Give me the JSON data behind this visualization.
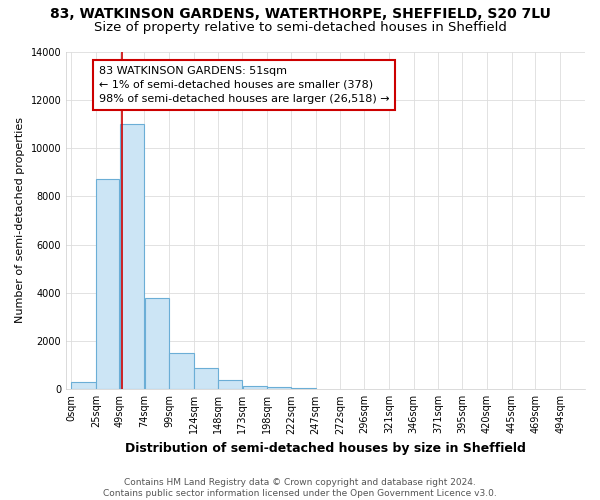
{
  "title_line1": "83, WATKINSON GARDENS, WATERTHORPE, SHEFFIELD, S20 7LU",
  "title_line2": "Size of property relative to semi-detached houses in Sheffield",
  "xlabel": "Distribution of semi-detached houses by size in Sheffield",
  "ylabel": "Number of semi-detached properties",
  "bar_left_edges": [
    0,
    25,
    49,
    74,
    99,
    124,
    148,
    173,
    198,
    222,
    247,
    272,
    296,
    321,
    346,
    371,
    395,
    420,
    445,
    469
  ],
  "bar_widths": [
    25,
    24,
    25,
    25,
    25,
    24,
    25,
    25,
    24,
    25,
    25,
    24,
    25,
    25,
    25,
    24,
    25,
    25,
    24,
    25
  ],
  "bar_heights": [
    300,
    8700,
    11000,
    3800,
    1500,
    900,
    400,
    150,
    100,
    50,
    0,
    0,
    0,
    0,
    0,
    0,
    0,
    0,
    0,
    0
  ],
  "bar_color": "#cce5f5",
  "bar_edge_color": "#6baed6",
  "property_x": 51,
  "annotation_text": "83 WATKINSON GARDENS: 51sqm\n← 1% of semi-detached houses are smaller (378)\n98% of semi-detached houses are larger (26,518) →",
  "annotation_box_color": "#ffffff",
  "annotation_box_edge": "#cc0000",
  "red_line_color": "#cc0000",
  "ylim": [
    0,
    14000
  ],
  "yticks": [
    0,
    2000,
    4000,
    6000,
    8000,
    10000,
    12000,
    14000
  ],
  "xtick_labels": [
    "0sqm",
    "25sqm",
    "49sqm",
    "74sqm",
    "99sqm",
    "124sqm",
    "148sqm",
    "173sqm",
    "198sqm",
    "222sqm",
    "247sqm",
    "272sqm",
    "296sqm",
    "321sqm",
    "346sqm",
    "371sqm",
    "395sqm",
    "420sqm",
    "445sqm",
    "469sqm",
    "494sqm"
  ],
  "xtick_positions": [
    0,
    25,
    49,
    74,
    99,
    124,
    148,
    173,
    198,
    222,
    247,
    272,
    296,
    321,
    346,
    371,
    395,
    420,
    445,
    469,
    494
  ],
  "footer_text": "Contains HM Land Registry data © Crown copyright and database right 2024.\nContains public sector information licensed under the Open Government Licence v3.0.",
  "background_color": "#ffffff",
  "grid_color": "#dddddd",
  "title_fontsize": 10,
  "subtitle_fontsize": 9.5,
  "xlabel_fontsize": 9,
  "ylabel_fontsize": 8,
  "tick_fontsize": 7,
  "annotation_fontsize": 8,
  "footer_fontsize": 6.5
}
